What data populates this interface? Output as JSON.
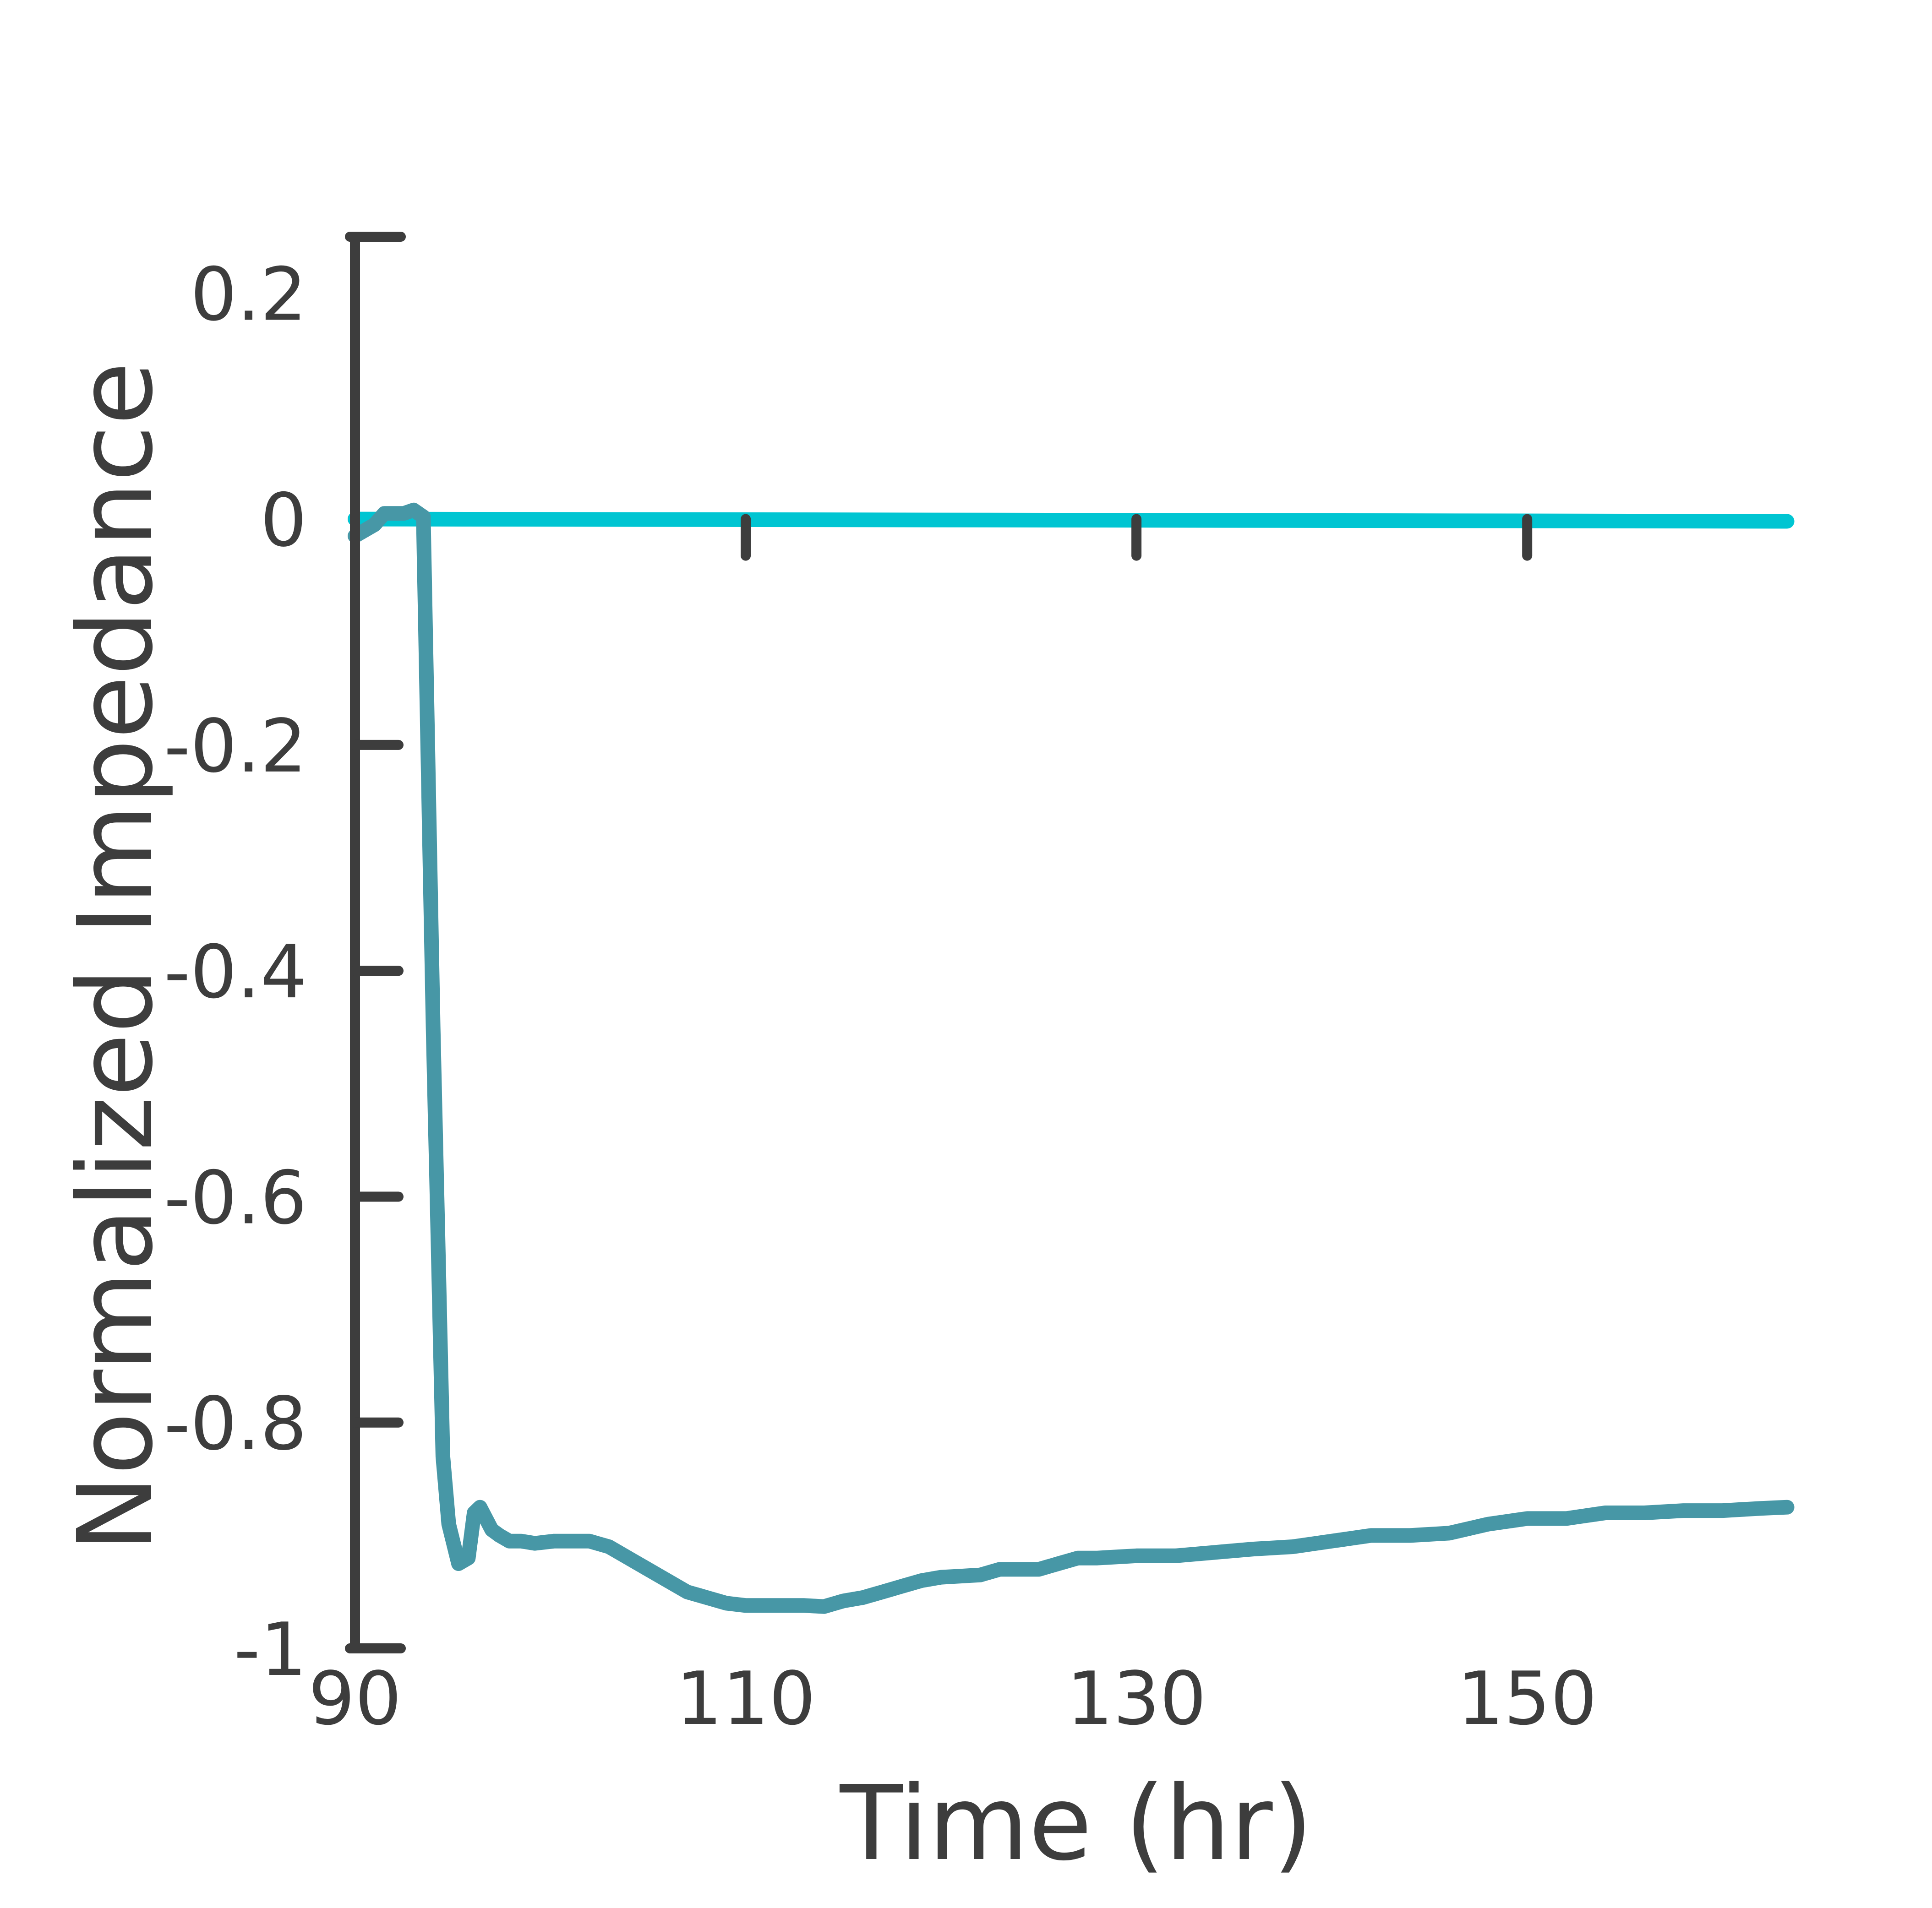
{
  "chart_data": {
    "type": "line",
    "xlabel": "Time (hr)",
    "ylabel": "Normalized Impedance",
    "xlim": [
      90,
      163.5
    ],
    "ylim": [
      -1,
      0.25
    ],
    "x_ticks": [
      {
        "value": 90,
        "label": "90"
      },
      {
        "value": 110,
        "label": "110"
      },
      {
        "value": 130,
        "label": "130"
      },
      {
        "value": 150,
        "label": "150"
      }
    ],
    "y_ticks": [
      {
        "value": 0.2,
        "label": "0.2"
      },
      {
        "value": 0,
        "label": "0"
      },
      {
        "value": -0.2,
        "label": "-0.2"
      },
      {
        "value": -0.4,
        "label": "-0.4"
      },
      {
        "value": -0.6,
        "label": "-0.6"
      },
      {
        "value": -0.8,
        "label": "-0.8"
      },
      {
        "value": -1,
        "label": "-1"
      }
    ],
    "grid": false,
    "legend": "none",
    "colors": {
      "axis": "#3d3d3d",
      "control": "#00c5d2",
      "treated": "#4797a6"
    },
    "series": [
      {
        "color": "#00c5d2",
        "x": [
          90,
          163.3
        ],
        "y": [
          0.0,
          -0.002
        ]
      },
      {
        "color": "#4797a6",
        "x": [
          90,
          90.5,
          91,
          91.5,
          92,
          92.5,
          93,
          93.5,
          94,
          94.2,
          94.5,
          94.8,
          95.3,
          95.8,
          96.1,
          96.4,
          96.7,
          97,
          97.4,
          97.9,
          98.5,
          99.2,
          100.2,
          101,
          102,
          103,
          104,
          105,
          106,
          107,
          108,
          109,
          110,
          111,
          112,
          113,
          114,
          115,
          116,
          117,
          118,
          119,
          120,
          121,
          122,
          123,
          124,
          125,
          126,
          127,
          128,
          130,
          132,
          134,
          136,
          138,
          140,
          142,
          144,
          146,
          148,
          150,
          152,
          154,
          156,
          158,
          160,
          162,
          163.3
        ],
        "y": [
          -0.015,
          -0.01,
          -0.005,
          0.005,
          0.005,
          0.005,
          0.008,
          0.002,
          -0.45,
          -0.6,
          -0.83,
          -0.89,
          -0.925,
          -0.92,
          -0.88,
          -0.875,
          -0.885,
          -0.895,
          -0.9,
          -0.905,
          -0.905,
          -0.907,
          -0.905,
          -0.905,
          -0.905,
          -0.91,
          -0.92,
          -0.93,
          -0.94,
          -0.95,
          -0.955,
          -0.96,
          -0.962,
          -0.962,
          -0.962,
          -0.962,
          -0.963,
          -0.958,
          -0.955,
          -0.95,
          -0.945,
          -0.94,
          -0.937,
          -0.936,
          -0.935,
          -0.93,
          -0.93,
          -0.93,
          -0.925,
          -0.92,
          -0.92,
          -0.918,
          -0.918,
          -0.915,
          -0.912,
          -0.91,
          -0.905,
          -0.9,
          -0.9,
          -0.898,
          -0.89,
          -0.885,
          -0.885,
          -0.88,
          -0.88,
          -0.878,
          -0.878,
          -0.876,
          -0.875
        ]
      }
    ]
  }
}
